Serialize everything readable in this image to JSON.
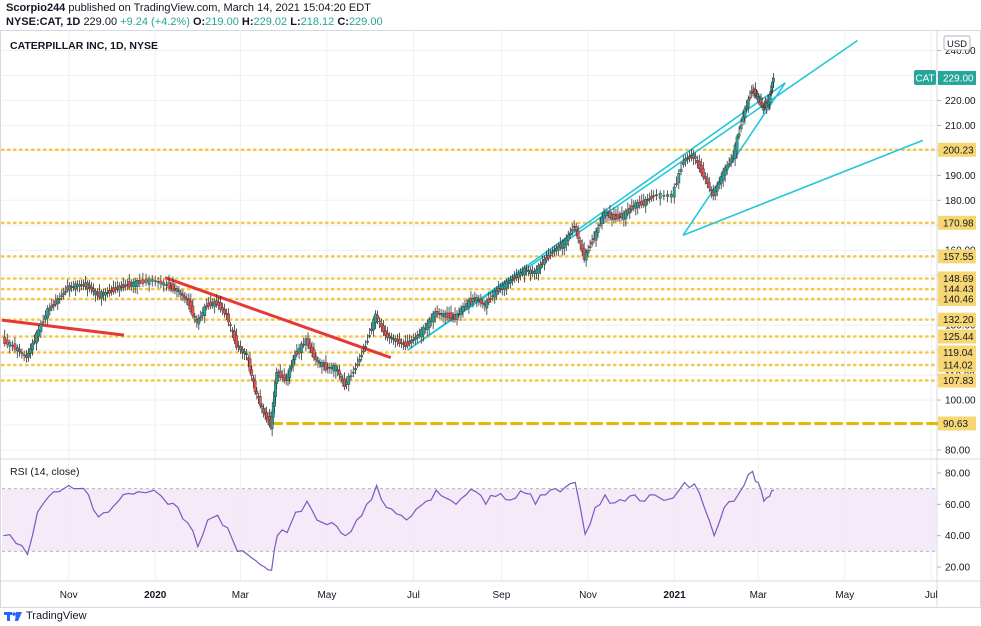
{
  "header": {
    "author": "Scorpio244",
    "published_text": "published on TradingView.com, March 14, 2021 15:04:20 EDT",
    "symbol": "NYSE:CAT, 1D",
    "last": "229.00",
    "change": "+9.24 (+4.2%)",
    "o_label": "O:",
    "o": "219.00",
    "h_label": "H:",
    "h": "229.02",
    "l_label": "L:",
    "l": "218.12",
    "c_label": "C:",
    "c": "229.00"
  },
  "footer": {
    "brand": "TradingView"
  },
  "colors": {
    "up": "#26a69a",
    "down": "#ef5350",
    "channel": "#26c6da",
    "trend": "#e53935",
    "level": "#f2c94c",
    "rsi": "#7e57c2",
    "rsi_band": "#f3e5f5",
    "grid": "#eef0f3"
  },
  "chart_data": [
    {
      "type": "candlestick",
      "title": "CATERPILLAR INC, 1D, NYSE",
      "currency": "USD",
      "symbol_tag": "CAT",
      "last_price": 229.0,
      "ylim": [
        78,
        245
      ],
      "y_ticks": [
        80,
        90,
        100,
        110,
        120,
        130,
        140,
        150,
        160,
        170,
        180,
        190,
        200,
        210,
        220,
        230,
        240
      ],
      "x_labels": [
        "Nov",
        "2020",
        "Mar",
        "May",
        "Jul",
        "Sep",
        "Nov",
        "2021",
        "Mar",
        "May",
        "Jul"
      ],
      "x_label_dates": [
        "2019-11-01",
        "2020-01-01",
        "2020-03-01",
        "2020-05-01",
        "2020-07-01",
        "2020-09-01",
        "2020-11-01",
        "2021-01-01",
        "2021-03-01",
        "2021-05-01",
        "2021-07-01"
      ],
      "x_range": [
        "2019-09-15",
        "2021-07-05"
      ],
      "levels": [
        {
          "value": 200.23,
          "label": "200.23",
          "from": "2019-09-15"
        },
        {
          "value": 170.98,
          "label": "170.98",
          "from": "2019-09-15"
        },
        {
          "value": 157.55,
          "label": "157.55",
          "from": "2019-09-15"
        },
        {
          "value": 148.69,
          "label": "148.69",
          "from": "2019-09-15"
        },
        {
          "value": 144.43,
          "label": "144.43",
          "from": "2019-09-15"
        },
        {
          "value": 140.46,
          "label": "140.46",
          "from": "2019-09-15"
        },
        {
          "value": 132.2,
          "label": "132.20",
          "from": "2019-09-15"
        },
        {
          "value": 125.44,
          "label": "125.44",
          "from": "2019-09-15"
        },
        {
          "value": 119.04,
          "label": "119.04",
          "from": "2019-09-15"
        },
        {
          "value": 114.02,
          "label": "114.02",
          "from": "2019-09-15"
        },
        {
          "value": 107.83,
          "label": "107.83",
          "from": "2019-09-15"
        },
        {
          "value": 90.63,
          "label": "90.63",
          "from": "2020-03-23",
          "dashed": true
        }
      ],
      "trendlines": [
        {
          "kind": "red",
          "points": [
            [
              "2019-09-15",
              132.0
            ],
            [
              "2019-12-10",
              126.0
            ]
          ]
        },
        {
          "kind": "red",
          "points": [
            [
              "2020-01-08",
              149.0
            ],
            [
              "2020-06-15",
              117.0
            ]
          ]
        },
        {
          "kind": "channel",
          "points": [
            [
              "2020-06-27",
              120.0
            ],
            [
              "2021-05-10",
              244.0
            ]
          ]
        },
        {
          "kind": "channel",
          "points": [
            [
              "2020-06-27",
              120.0
            ],
            [
              "2021-03-20",
              227.0
            ]
          ]
        },
        {
          "kind": "channel",
          "points": [
            [
              "2021-01-07",
              166.0
            ],
            [
              "2021-06-25",
              204.0
            ]
          ]
        },
        {
          "kind": "channel",
          "points": [
            [
              "2021-01-07",
              166.0
            ],
            [
              "2021-03-20",
              227.0
            ]
          ]
        }
      ],
      "closes": [
        [
          "2019-09-16",
          124
        ],
        [
          "2019-09-25",
          121
        ],
        [
          "2019-10-03",
          117
        ],
        [
          "2019-10-10",
          126
        ],
        [
          "2019-10-18",
          136
        ],
        [
          "2019-10-25",
          140
        ],
        [
          "2019-11-01",
          145
        ],
        [
          "2019-11-08",
          146
        ],
        [
          "2019-11-15",
          146
        ],
        [
          "2019-11-22",
          142
        ],
        [
          "2019-11-29",
          143
        ],
        [
          "2019-12-06",
          145
        ],
        [
          "2019-12-13",
          146
        ],
        [
          "2019-12-20",
          147
        ],
        [
          "2019-12-31",
          148
        ],
        [
          "2020-01-10",
          146
        ],
        [
          "2020-01-17",
          144
        ],
        [
          "2020-01-24",
          140
        ],
        [
          "2020-01-31",
          131
        ],
        [
          "2020-02-07",
          138
        ],
        [
          "2020-02-14",
          139
        ],
        [
          "2020-02-21",
          134
        ],
        [
          "2020-02-28",
          122
        ],
        [
          "2020-03-06",
          118
        ],
        [
          "2020-03-12",
          104
        ],
        [
          "2020-03-18",
          95
        ],
        [
          "2020-03-23",
          90
        ],
        [
          "2020-03-27",
          111
        ],
        [
          "2020-04-03",
          108
        ],
        [
          "2020-04-09",
          118
        ],
        [
          "2020-04-17",
          124
        ],
        [
          "2020-04-24",
          116
        ],
        [
          "2020-05-01",
          113
        ],
        [
          "2020-05-08",
          113
        ],
        [
          "2020-05-14",
          106
        ],
        [
          "2020-05-22",
          113
        ],
        [
          "2020-05-29",
          122
        ],
        [
          "2020-06-05",
          134
        ],
        [
          "2020-06-12",
          126
        ],
        [
          "2020-06-19",
          124
        ],
        [
          "2020-06-26",
          122
        ],
        [
          "2020-07-03",
          125
        ],
        [
          "2020-07-10",
          129
        ],
        [
          "2020-07-17",
          135
        ],
        [
          "2020-07-24",
          134
        ],
        [
          "2020-07-31",
          133
        ],
        [
          "2020-08-07",
          138
        ],
        [
          "2020-08-14",
          141
        ],
        [
          "2020-08-21",
          138
        ],
        [
          "2020-08-28",
          143
        ],
        [
          "2020-09-04",
          146
        ],
        [
          "2020-09-11",
          149
        ],
        [
          "2020-09-18",
          152
        ],
        [
          "2020-09-25",
          151
        ],
        [
          "2020-10-02",
          156
        ],
        [
          "2020-10-09",
          160
        ],
        [
          "2020-10-16",
          163
        ],
        [
          "2020-10-23",
          170
        ],
        [
          "2020-10-30",
          157
        ],
        [
          "2020-11-06",
          165
        ],
        [
          "2020-11-13",
          175
        ],
        [
          "2020-11-20",
          173
        ],
        [
          "2020-11-27",
          174
        ],
        [
          "2020-12-04",
          178
        ],
        [
          "2020-12-11",
          179
        ],
        [
          "2020-12-18",
          182
        ],
        [
          "2020-12-31",
          182
        ],
        [
          "2021-01-08",
          196
        ],
        [
          "2021-01-15",
          198
        ],
        [
          "2021-01-22",
          190
        ],
        [
          "2021-01-29",
          182
        ],
        [
          "2021-02-05",
          191
        ],
        [
          "2021-02-12",
          198
        ],
        [
          "2021-02-19",
          214
        ],
        [
          "2021-02-25",
          224
        ],
        [
          "2021-03-01",
          222
        ],
        [
          "2021-03-05",
          217
        ],
        [
          "2021-03-09",
          220
        ],
        [
          "2021-03-12",
          229
        ]
      ]
    },
    {
      "type": "line",
      "title": "RSI (14, close)",
      "ylim": [
        13,
        87
      ],
      "y_ticks": [
        20,
        40,
        60,
        80
      ],
      "band": [
        30,
        70
      ],
      "series": [
        {
          "values": [
            [
              "2019-09-16",
              40
            ],
            [
              "2019-09-25",
              35
            ],
            [
              "2019-10-03",
              28
            ],
            [
              "2019-10-10",
              55
            ],
            [
              "2019-10-18",
              65
            ],
            [
              "2019-10-25",
              68
            ],
            [
              "2019-11-01",
              72
            ],
            [
              "2019-11-08",
              70
            ],
            [
              "2019-11-15",
              66
            ],
            [
              "2019-11-22",
              52
            ],
            [
              "2019-11-29",
              55
            ],
            [
              "2019-12-06",
              62
            ],
            [
              "2019-12-13",
              67
            ],
            [
              "2019-12-20",
              68
            ],
            [
              "2019-12-31",
              69
            ],
            [
              "2020-01-10",
              60
            ],
            [
              "2020-01-17",
              58
            ],
            [
              "2020-01-24",
              48
            ],
            [
              "2020-01-31",
              33
            ],
            [
              "2020-02-07",
              50
            ],
            [
              "2020-02-14",
              53
            ],
            [
              "2020-02-21",
              45
            ],
            [
              "2020-02-28",
              30
            ],
            [
              "2020-03-06",
              28
            ],
            [
              "2020-03-12",
              24
            ],
            [
              "2020-03-18",
              20
            ],
            [
              "2020-03-23",
              18
            ],
            [
              "2020-03-27",
              40
            ],
            [
              "2020-04-03",
              42
            ],
            [
              "2020-04-09",
              55
            ],
            [
              "2020-04-17",
              62
            ],
            [
              "2020-04-24",
              50
            ],
            [
              "2020-05-01",
              47
            ],
            [
              "2020-05-08",
              46
            ],
            [
              "2020-05-14",
              40
            ],
            [
              "2020-05-22",
              50
            ],
            [
              "2020-05-29",
              60
            ],
            [
              "2020-06-05",
              72
            ],
            [
              "2020-06-12",
              58
            ],
            [
              "2020-06-19",
              54
            ],
            [
              "2020-06-26",
              50
            ],
            [
              "2020-07-03",
              57
            ],
            [
              "2020-07-10",
              62
            ],
            [
              "2020-07-17",
              69
            ],
            [
              "2020-07-24",
              64
            ],
            [
              "2020-07-31",
              60
            ],
            [
              "2020-08-07",
              66
            ],
            [
              "2020-08-14",
              68
            ],
            [
              "2020-08-21",
              60
            ],
            [
              "2020-08-28",
              65
            ],
            [
              "2020-09-04",
              63
            ],
            [
              "2020-09-11",
              64
            ],
            [
              "2020-09-18",
              67
            ],
            [
              "2020-09-25",
              60
            ],
            [
              "2020-10-02",
              66
            ],
            [
              "2020-10-09",
              70
            ],
            [
              "2020-10-16",
              71
            ],
            [
              "2020-10-23",
              74
            ],
            [
              "2020-10-30",
              41
            ],
            [
              "2020-11-06",
              58
            ],
            [
              "2020-11-13",
              66
            ],
            [
              "2020-11-20",
              61
            ],
            [
              "2020-11-27",
              62
            ],
            [
              "2020-12-04",
              66
            ],
            [
              "2020-12-11",
              62
            ],
            [
              "2020-12-18",
              66
            ],
            [
              "2020-12-31",
              64
            ],
            [
              "2021-01-08",
              74
            ],
            [
              "2021-01-15",
              73
            ],
            [
              "2021-01-22",
              58
            ],
            [
              "2021-01-29",
              40
            ],
            [
              "2021-02-05",
              58
            ],
            [
              "2021-02-12",
              62
            ],
            [
              "2021-02-19",
              72
            ],
            [
              "2021-02-25",
              81
            ],
            [
              "2021-03-01",
              74
            ],
            [
              "2021-03-05",
              62
            ],
            [
              "2021-03-09",
              65
            ],
            [
              "2021-03-12",
              69
            ]
          ]
        }
      ]
    }
  ]
}
